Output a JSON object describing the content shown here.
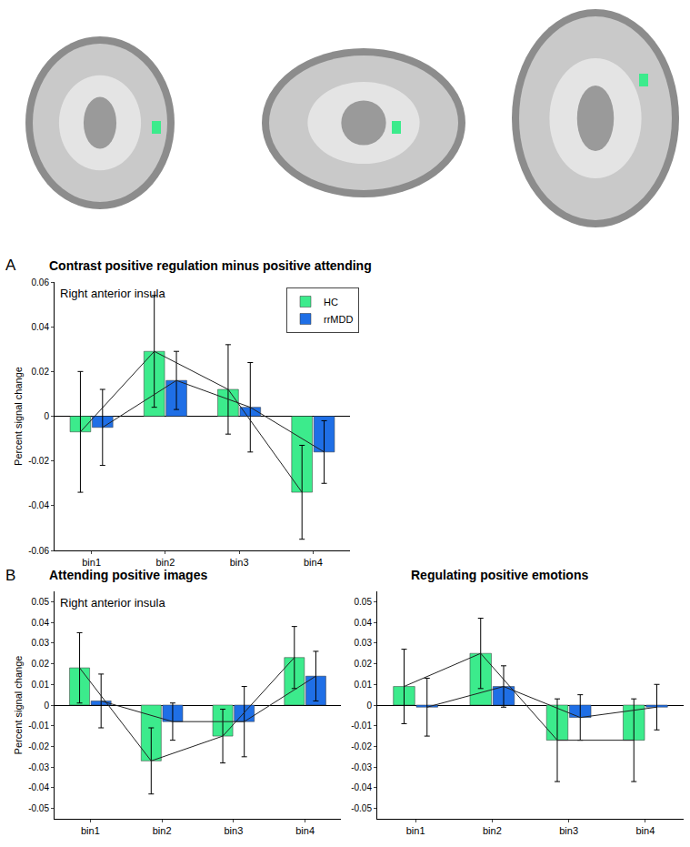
{
  "chart_data": [
    {
      "type": "bar",
      "title": "Contrast positive regulation minus positive attending",
      "subtitle": "Right anterior insula",
      "annotations": [
        "A"
      ],
      "ylabel": "Percent signal change",
      "categories": [
        "bin1",
        "bin2",
        "bin3",
        "bin4"
      ],
      "series": [
        {
          "name": "HC",
          "color": "#3ceb8c",
          "values": [
            -0.007,
            0.029,
            0.012,
            -0.034
          ],
          "errors": [
            0.027,
            0.025,
            0.02,
            0.021
          ]
        },
        {
          "name": "rrMDD",
          "color": "#1f6fe6",
          "values": [
            -0.005,
            0.016,
            0.004,
            -0.016
          ],
          "errors": [
            0.017,
            0.013,
            0.02,
            0.014
          ]
        }
      ],
      "ylim": [
        -0.06,
        0.06
      ],
      "yticks": [
        -0.06,
        -0.04,
        -0.02,
        0,
        0.02,
        0.04,
        0.06
      ],
      "legend": "upper right",
      "grid": false
    },
    {
      "type": "bar",
      "title": "Attending positive images",
      "subtitle": "Right anterior insula",
      "annotations": [
        "B"
      ],
      "ylabel": "Percent signal change",
      "categories": [
        "bin1",
        "bin2",
        "bin3",
        "bin4"
      ],
      "series": [
        {
          "name": "HC",
          "color": "#3ceb8c",
          "values": [
            0.018,
            -0.027,
            -0.015,
            0.023
          ],
          "errors": [
            0.017,
            0.016,
            0.013,
            0.015
          ]
        },
        {
          "name": "rrMDD",
          "color": "#1f6fe6",
          "values": [
            0.002,
            -0.008,
            -0.008,
            0.014
          ],
          "errors": [
            0.013,
            0.009,
            0.017,
            0.012
          ]
        }
      ],
      "ylim": [
        -0.055,
        0.055
      ],
      "yticks": [
        -0.05,
        -0.04,
        -0.03,
        -0.02,
        -0.01,
        0,
        0.01,
        0.02,
        0.03,
        0.04,
        0.05
      ],
      "grid": false
    },
    {
      "type": "bar",
      "title": "Regulating positive emotions",
      "categories": [
        "bin1",
        "bin2",
        "bin3",
        "bin4"
      ],
      "series": [
        {
          "name": "HC",
          "color": "#3ceb8c",
          "values": [
            0.009,
            0.025,
            -0.017,
            -0.017
          ],
          "errors": [
            0.018,
            0.017,
            0.02,
            0.02
          ]
        },
        {
          "name": "rrMDD",
          "color": "#1f6fe6",
          "values": [
            -0.001,
            0.009,
            -0.006,
            -0.001
          ],
          "errors": [
            0.014,
            0.01,
            0.011,
            0.011
          ]
        }
      ],
      "ylim": [
        -0.055,
        0.055
      ],
      "yticks": [
        -0.05,
        -0.04,
        -0.03,
        -0.02,
        -0.01,
        0,
        0.01,
        0.02,
        0.03,
        0.04,
        0.05
      ],
      "grid": false
    }
  ]
}
